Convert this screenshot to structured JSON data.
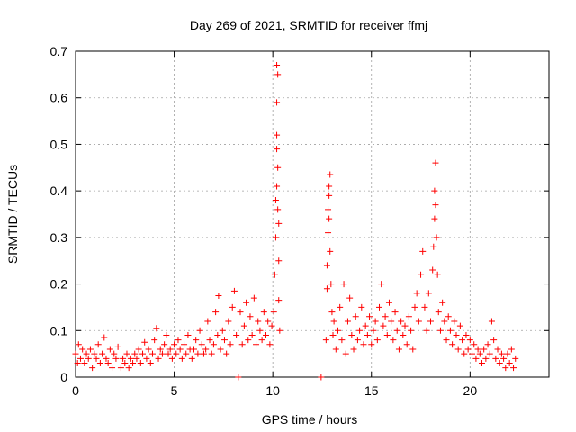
{
  "chart_data": {
    "type": "scatter",
    "title": "Day 269 of 2021, SRMTID for receiver ffmj",
    "xlabel": "GPS time / hours",
    "ylabel": "SRMTID / TECUs",
    "xlim": [
      0,
      24
    ],
    "ylim": [
      0,
      0.7
    ],
    "x_ticks": [
      0,
      5,
      10,
      15,
      20
    ],
    "y_ticks": [
      0,
      0.1,
      0.2,
      0.3,
      0.4,
      0.5,
      0.6,
      0.7
    ],
    "x_tick_labels": [
      "0",
      "5",
      "10",
      "15",
      "20"
    ],
    "y_tick_labels": [
      "0",
      "0.1",
      "0.2",
      "0.3",
      "0.4",
      "0.5",
      "0.6",
      "0.7"
    ],
    "grid": true,
    "marker": "+",
    "marker_color": "#ff0000",
    "series": [
      {
        "name": "SRMTID",
        "points": [
          [
            0.0,
            0.05
          ],
          [
            0.1,
            0.03
          ],
          [
            0.15,
            0.07
          ],
          [
            0.25,
            0.04
          ],
          [
            0.35,
            0.06
          ],
          [
            0.45,
            0.03
          ],
          [
            0.55,
            0.05
          ],
          [
            0.65,
            0.04
          ],
          [
            0.75,
            0.06
          ],
          [
            0.85,
            0.02
          ],
          [
            0.95,
            0.05
          ],
          [
            1.05,
            0.04
          ],
          [
            1.15,
            0.07
          ],
          [
            1.25,
            0.03
          ],
          [
            1.35,
            0.05
          ],
          [
            1.45,
            0.085
          ],
          [
            1.55,
            0.04
          ],
          [
            1.65,
            0.03
          ],
          [
            1.75,
            0.06
          ],
          [
            1.85,
            0.02
          ],
          [
            1.95,
            0.05
          ],
          [
            2.05,
            0.04
          ],
          [
            2.15,
            0.065
          ],
          [
            2.3,
            0.02
          ],
          [
            2.4,
            0.04
          ],
          [
            2.5,
            0.03
          ],
          [
            2.6,
            0.05
          ],
          [
            2.7,
            0.02
          ],
          [
            2.8,
            0.04
          ],
          [
            2.9,
            0.03
          ],
          [
            3.0,
            0.05
          ],
          [
            3.1,
            0.04
          ],
          [
            3.2,
            0.06
          ],
          [
            3.3,
            0.03
          ],
          [
            3.4,
            0.05
          ],
          [
            3.5,
            0.075
          ],
          [
            3.6,
            0.04
          ],
          [
            3.7,
            0.06
          ],
          [
            3.8,
            0.03
          ],
          [
            3.9,
            0.05
          ],
          [
            4.0,
            0.08
          ],
          [
            4.1,
            0.105
          ],
          [
            4.2,
            0.04
          ],
          [
            4.3,
            0.06
          ],
          [
            4.4,
            0.05
          ],
          [
            4.5,
            0.07
          ],
          [
            4.6,
            0.09
          ],
          [
            4.7,
            0.05
          ],
          [
            4.8,
            0.06
          ],
          [
            4.9,
            0.04
          ],
          [
            5.0,
            0.07
          ],
          [
            5.1,
            0.05
          ],
          [
            5.2,
            0.08
          ],
          [
            5.3,
            0.06
          ],
          [
            5.4,
            0.04
          ],
          [
            5.5,
            0.07
          ],
          [
            5.6,
            0.05
          ],
          [
            5.7,
            0.09
          ],
          [
            5.8,
            0.06
          ],
          [
            5.9,
            0.04
          ],
          [
            6.0,
            0.06
          ],
          [
            6.1,
            0.08
          ],
          [
            6.2,
            0.05
          ],
          [
            6.3,
            0.1
          ],
          [
            6.4,
            0.07
          ],
          [
            6.5,
            0.05
          ],
          [
            6.6,
            0.06
          ],
          [
            6.7,
            0.12
          ],
          [
            6.8,
            0.08
          ],
          [
            6.9,
            0.05
          ],
          [
            7.0,
            0.07
          ],
          [
            7.1,
            0.14
          ],
          [
            7.2,
            0.09
          ],
          [
            7.25,
            0.175
          ],
          [
            7.35,
            0.06
          ],
          [
            7.45,
            0.1
          ],
          [
            7.55,
            0.08
          ],
          [
            7.65,
            0.05
          ],
          [
            7.75,
            0.12
          ],
          [
            7.85,
            0.07
          ],
          [
            7.95,
            0.15
          ],
          [
            8.05,
            0.185
          ],
          [
            8.15,
            0.09
          ],
          [
            8.25,
            0.0
          ],
          [
            8.35,
            0.14
          ],
          [
            8.45,
            0.07
          ],
          [
            8.55,
            0.11
          ],
          [
            8.65,
            0.16
          ],
          [
            8.75,
            0.08
          ],
          [
            8.85,
            0.13
          ],
          [
            8.95,
            0.09
          ],
          [
            9.05,
            0.17
          ],
          [
            9.15,
            0.07
          ],
          [
            9.25,
            0.12
          ],
          [
            9.35,
            0.1
          ],
          [
            9.45,
            0.08
          ],
          [
            9.55,
            0.14
          ],
          [
            9.65,
            0.09
          ],
          [
            9.75,
            0.12
          ],
          [
            9.85,
            0.07
          ],
          [
            9.95,
            0.11
          ],
          [
            10.05,
            0.14
          ],
          [
            10.1,
            0.22
          ],
          [
            10.15,
            0.3
          ],
          [
            10.15,
            0.38
          ],
          [
            10.2,
            0.41
          ],
          [
            10.2,
            0.49
          ],
          [
            10.2,
            0.52
          ],
          [
            10.2,
            0.59
          ],
          [
            10.25,
            0.65
          ],
          [
            10.2,
            0.67
          ],
          [
            10.25,
            0.45
          ],
          [
            10.25,
            0.36
          ],
          [
            10.3,
            0.25
          ],
          [
            10.3,
            0.165
          ],
          [
            10.35,
            0.1
          ],
          [
            10.3,
            0.33
          ],
          [
            12.45,
            0.0
          ],
          [
            12.7,
            0.08
          ],
          [
            12.75,
            0.19
          ],
          [
            12.75,
            0.24
          ],
          [
            12.8,
            0.31
          ],
          [
            12.8,
            0.36
          ],
          [
            12.85,
            0.39
          ],
          [
            12.85,
            0.41
          ],
          [
            12.9,
            0.435
          ],
          [
            12.85,
            0.34
          ],
          [
            12.9,
            0.27
          ],
          [
            12.95,
            0.2
          ],
          [
            13.0,
            0.14
          ],
          [
            13.05,
            0.09
          ],
          [
            13.1,
            0.12
          ],
          [
            13.2,
            0.06
          ],
          [
            13.3,
            0.1
          ],
          [
            13.4,
            0.15
          ],
          [
            13.5,
            0.08
          ],
          [
            13.6,
            0.2
          ],
          [
            13.7,
            0.05
          ],
          [
            13.8,
            0.12
          ],
          [
            13.9,
            0.17
          ],
          [
            14.0,
            0.09
          ],
          [
            14.1,
            0.06
          ],
          [
            14.2,
            0.13
          ],
          [
            14.3,
            0.08
          ],
          [
            14.4,
            0.1
          ],
          [
            14.5,
            0.15
          ],
          [
            14.6,
            0.07
          ],
          [
            14.7,
            0.11
          ],
          [
            14.8,
            0.09
          ],
          [
            14.9,
            0.13
          ],
          [
            15.0,
            0.07
          ],
          [
            15.1,
            0.1
          ],
          [
            15.2,
            0.12
          ],
          [
            15.3,
            0.08
          ],
          [
            15.4,
            0.15
          ],
          [
            15.5,
            0.2
          ],
          [
            15.6,
            0.11
          ],
          [
            15.7,
            0.13
          ],
          [
            15.8,
            0.09
          ],
          [
            15.9,
            0.16
          ],
          [
            16.0,
            0.12
          ],
          [
            16.1,
            0.08
          ],
          [
            16.2,
            0.14
          ],
          [
            16.3,
            0.1
          ],
          [
            16.4,
            0.06
          ],
          [
            16.5,
            0.12
          ],
          [
            16.6,
            0.09
          ],
          [
            16.7,
            0.11
          ],
          [
            16.8,
            0.07
          ],
          [
            16.9,
            0.13
          ],
          [
            17.0,
            0.1
          ],
          [
            17.1,
            0.06
          ],
          [
            17.2,
            0.15
          ],
          [
            17.3,
            0.18
          ],
          [
            17.4,
            0.12
          ],
          [
            17.5,
            0.22
          ],
          [
            17.6,
            0.27
          ],
          [
            17.7,
            0.15
          ],
          [
            17.8,
            0.1
          ],
          [
            17.9,
            0.18
          ],
          [
            18.0,
            0.12
          ],
          [
            18.1,
            0.23
          ],
          [
            18.15,
            0.28
          ],
          [
            18.2,
            0.34
          ],
          [
            18.2,
            0.4
          ],
          [
            18.25,
            0.46
          ],
          [
            18.25,
            0.37
          ],
          [
            18.3,
            0.3
          ],
          [
            18.35,
            0.22
          ],
          [
            18.4,
            0.14
          ],
          [
            18.5,
            0.1
          ],
          [
            18.6,
            0.16
          ],
          [
            18.7,
            0.12
          ],
          [
            18.8,
            0.08
          ],
          [
            18.9,
            0.13
          ],
          [
            19.0,
            0.1
          ],
          [
            19.1,
            0.07
          ],
          [
            19.2,
            0.12
          ],
          [
            19.3,
            0.09
          ],
          [
            19.4,
            0.06
          ],
          [
            19.5,
            0.11
          ],
          [
            19.6,
            0.08
          ],
          [
            19.7,
            0.05
          ],
          [
            19.8,
            0.09
          ],
          [
            19.9,
            0.06
          ],
          [
            20.0,
            0.08
          ],
          [
            20.1,
            0.05
          ],
          [
            20.2,
            0.07
          ],
          [
            20.3,
            0.04
          ],
          [
            20.4,
            0.06
          ],
          [
            20.5,
            0.05
          ],
          [
            20.6,
            0.03
          ],
          [
            20.7,
            0.06
          ],
          [
            20.8,
            0.04
          ],
          [
            20.9,
            0.07
          ],
          [
            21.0,
            0.05
          ],
          [
            21.1,
            0.12
          ],
          [
            21.2,
            0.08
          ],
          [
            21.3,
            0.04
          ],
          [
            21.4,
            0.06
          ],
          [
            21.5,
            0.03
          ],
          [
            21.6,
            0.05
          ],
          [
            21.7,
            0.04
          ],
          [
            21.8,
            0.02
          ],
          [
            21.9,
            0.05
          ],
          [
            22.0,
            0.03
          ],
          [
            22.1,
            0.06
          ],
          [
            22.2,
            0.02
          ],
          [
            22.3,
            0.04
          ]
        ]
      }
    ]
  }
}
